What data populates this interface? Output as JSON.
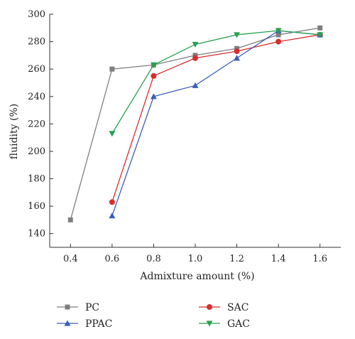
{
  "chart_data": {
    "type": "line",
    "title": "",
    "xlabel": "Admixture amount (%)",
    "ylabel": "fluidity (%)",
    "xlim": [
      0.3,
      1.7
    ],
    "ylim": [
      130,
      300
    ],
    "x_ticks": [
      "0.4",
      "0.6",
      "0.8",
      "1.0",
      "1.2",
      "1.4",
      "1.6"
    ],
    "y_ticks": [
      "140",
      "160",
      "180",
      "200",
      "220",
      "240",
      "260",
      "280",
      "300"
    ],
    "grid": false,
    "legend_position": "bottom",
    "series": [
      {
        "name": "PC",
        "color": "#7f7f7f",
        "marker": "square",
        "x": [
          0.4,
          0.6,
          0.8,
          1.0,
          1.2,
          1.4,
          1.6
        ],
        "y": [
          150,
          260,
          263,
          270,
          275,
          285,
          290
        ]
      },
      {
        "name": "SAC",
        "color": "#d62f2f",
        "marker": "circle",
        "x": [
          0.6,
          0.8,
          1.0,
          1.2,
          1.4,
          1.6
        ],
        "y": [
          163,
          255,
          268,
          273,
          280,
          285
        ]
      },
      {
        "name": "PPAC",
        "color": "#3a5fb5",
        "marker": "triangle-up",
        "x": [
          0.6,
          0.8,
          1.0,
          1.2,
          1.4,
          1.6
        ],
        "y": [
          153,
          240,
          248,
          268,
          288,
          285
        ]
      },
      {
        "name": "GAC",
        "color": "#2aa052",
        "marker": "triangle-down",
        "x": [
          0.6,
          0.8,
          1.0,
          1.2,
          1.4,
          1.6
        ],
        "y": [
          213,
          263,
          278,
          285,
          288,
          285
        ]
      }
    ]
  }
}
